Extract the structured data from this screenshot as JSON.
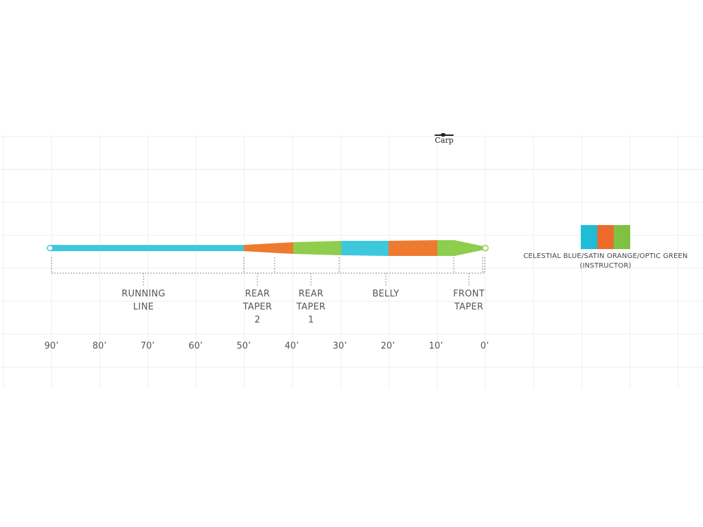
{
  "brand": {
    "name": "Carp"
  },
  "sections": {
    "running_line": [
      "RUNNING",
      "LINE"
    ],
    "rear_taper_2": [
      "REAR",
      "TAPER",
      "2"
    ],
    "rear_taper_1": [
      "REAR",
      "TAPER",
      "1"
    ],
    "belly": [
      "BELLY"
    ],
    "front_taper": [
      "FRONT",
      "TAPER"
    ]
  },
  "axis": {
    "ticks": [
      "90’",
      "80’",
      "70’",
      "60’",
      "50’",
      "40’",
      "30’",
      "20’",
      "10’",
      "0’"
    ]
  },
  "legend": {
    "line1": "CELESTIAL BLUE/SATIN ORANGE/OPTIC GREEN",
    "line2": "(INSTRUCTOR)",
    "colors": {
      "celestial_blue": "#1fbcd6",
      "satin_orange": "#ec6a2c",
      "optic_green": "#7dc243"
    }
  },
  "line_colors": {
    "blue": "#3ec8dc",
    "orange": "#ee7a30",
    "green": "#8fcd4d"
  }
}
